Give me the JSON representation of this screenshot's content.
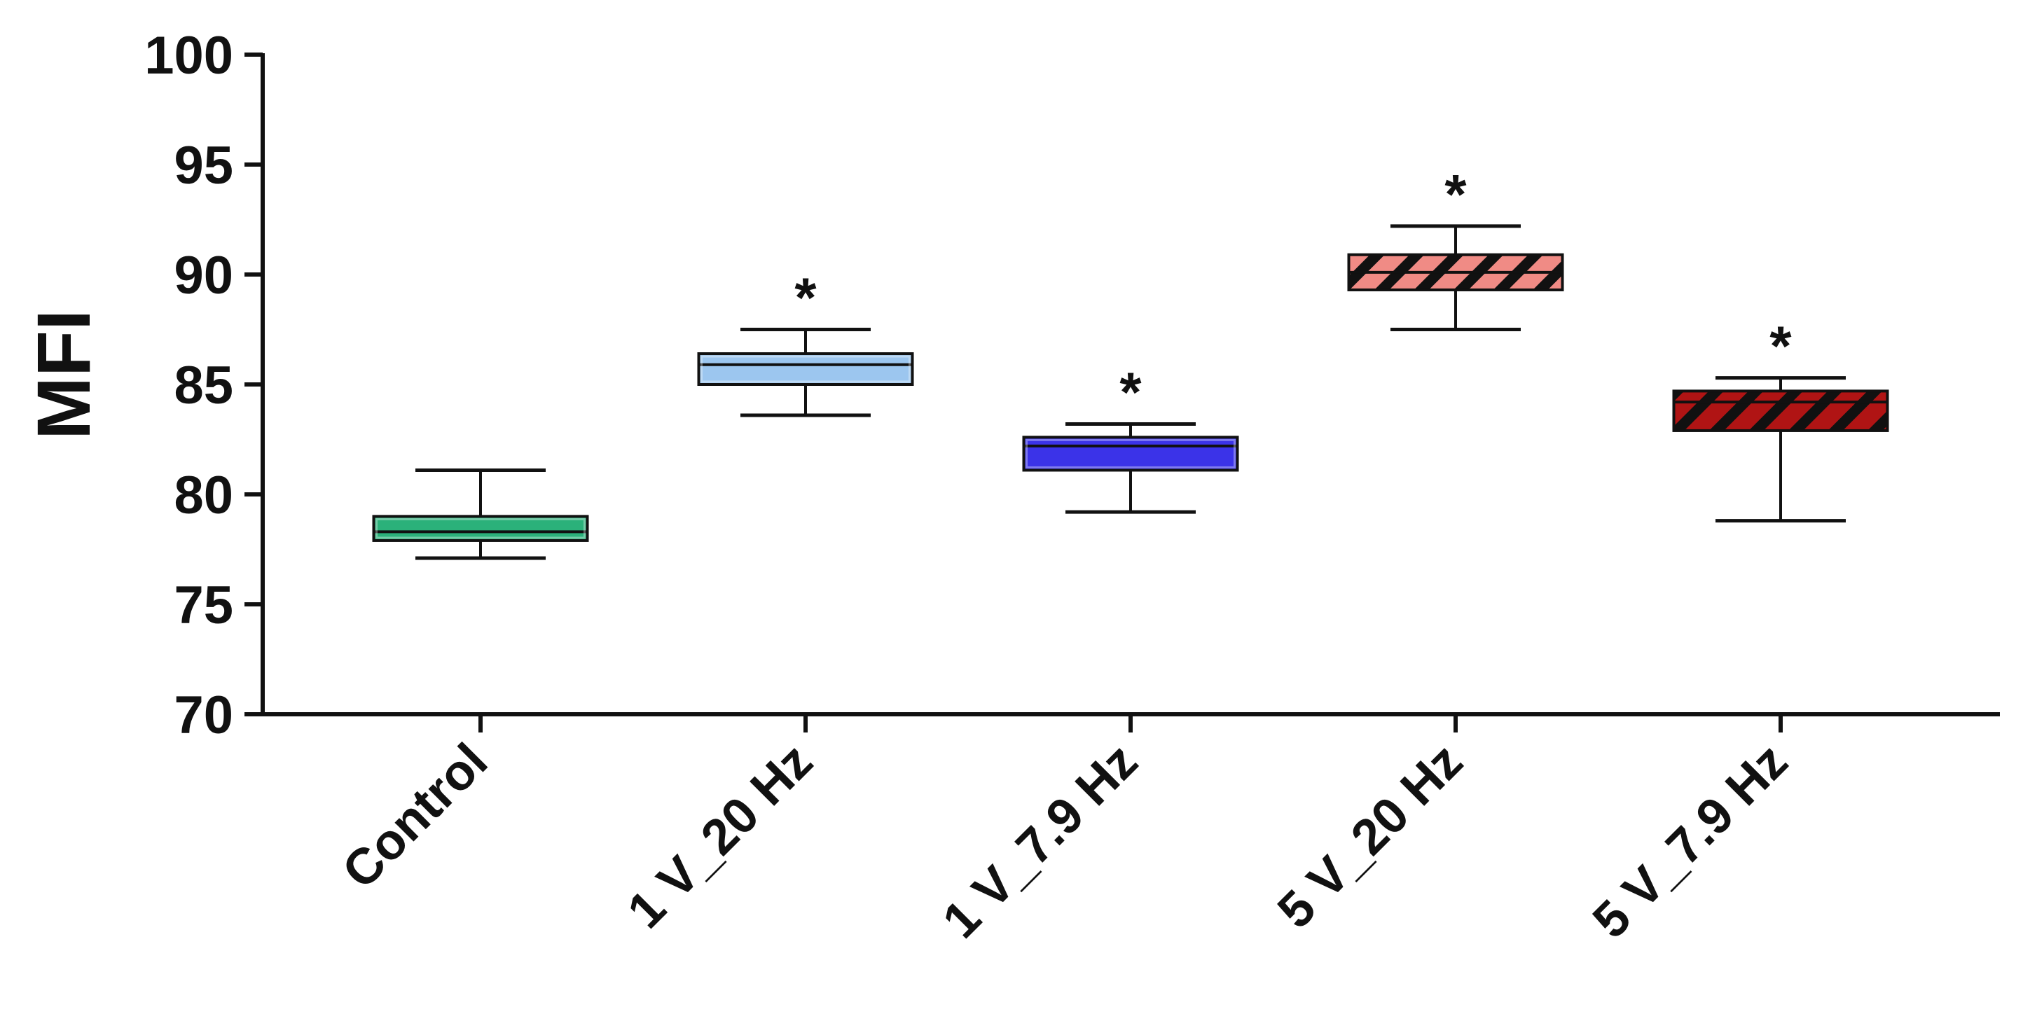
{
  "chart_data": {
    "type": "box",
    "ylabel": "MFI",
    "ylim": [
      70,
      100
    ],
    "yticks": [
      70,
      75,
      80,
      85,
      90,
      95,
      100
    ],
    "categories": [
      "Control",
      "1 V_20 Hz",
      "1 V_7.9 Hz",
      "5 V_20 Hz",
      "5 V_7.9 Hz"
    ],
    "boxes": [
      {
        "category": "Control",
        "min": 77.1,
        "q1": 77.9,
        "median": 78.3,
        "q3": 79.0,
        "max": 81.1,
        "significance": "",
        "color": "#2bb17a",
        "pattern": "solid"
      },
      {
        "category": "1 V_20 Hz",
        "min": 83.6,
        "q1": 85.0,
        "median": 85.9,
        "q3": 86.4,
        "max": 87.5,
        "significance": "*",
        "color": "#9cc6ef",
        "pattern": "solid"
      },
      {
        "category": "1 V_7.9 Hz",
        "min": 79.2,
        "q1": 81.1,
        "median": 82.2,
        "q3": 82.6,
        "max": 83.2,
        "significance": "*",
        "color": "#3b33e8",
        "pattern": "solid"
      },
      {
        "category": "5 V_20 Hz",
        "min": 87.5,
        "q1": 89.3,
        "median": 90.1,
        "q3": 90.9,
        "max": 92.2,
        "significance": "*",
        "color": "#f08b85",
        "pattern": "hatched"
      },
      {
        "category": "5 V_7.9 Hz",
        "min": 78.8,
        "q1": 82.9,
        "median": 84.2,
        "q3": 84.7,
        "max": 85.3,
        "significance": "*",
        "color": "#b01414",
        "pattern": "hatched"
      }
    ],
    "grid": false,
    "legend": "none"
  }
}
